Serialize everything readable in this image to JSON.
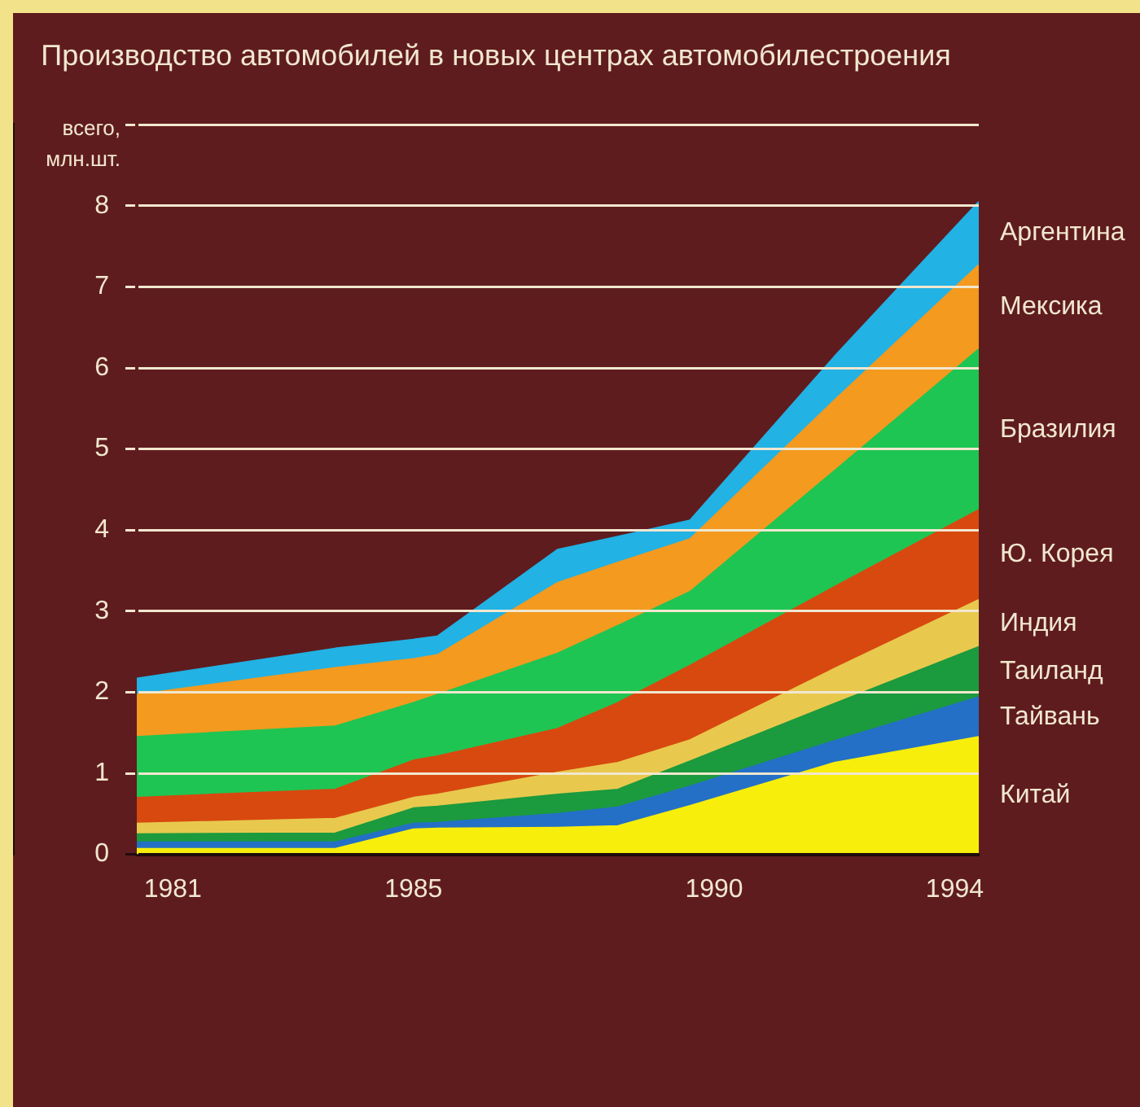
{
  "chart_data": {
    "type": "area",
    "title": "Производство автомобилей в новых центрах автомобилестроения",
    "ylabel": "всего, млн.шт.",
    "x": [
      1980.4,
      1983.7,
      1985,
      1985.4,
      1987.4,
      1988.4,
      1989.6,
      1992,
      1994.4
    ],
    "xlim": [
      1980.4,
      1994.4
    ],
    "xticks": [
      1981,
      1985,
      1990,
      1994
    ],
    "ylim": [
      0,
      9
    ],
    "yticks": [
      0,
      1,
      2,
      3,
      4,
      5,
      6,
      7,
      8,
      {
        "value": 9,
        "label": null
      }
    ],
    "stacked": true,
    "grid": "y",
    "legend": false,
    "series": [
      {
        "name": "Китай",
        "color": "#f7ee0c",
        "values": [
          0.07,
          0.07,
          0.31,
          0.32,
          0.33,
          0.35,
          0.6,
          1.13,
          1.45
        ]
      },
      {
        "name": "Тайвань",
        "color": "#2470c6",
        "values": [
          0.08,
          0.08,
          0.07,
          0.07,
          0.17,
          0.23,
          0.24,
          0.27,
          0.49
        ]
      },
      {
        "name": "Таиланд",
        "color": "#1c9a3e",
        "values": [
          0.1,
          0.11,
          0.19,
          0.2,
          0.24,
          0.22,
          0.31,
          0.46,
          0.62
        ]
      },
      {
        "name": "Индия",
        "color": "#e8c94e",
        "values": [
          0.13,
          0.18,
          0.13,
          0.15,
          0.27,
          0.33,
          0.26,
          0.43,
          0.58
        ]
      },
      {
        "name": "Ю. Корея",
        "color": "#d8490f",
        "values": [
          0.32,
          0.36,
          0.46,
          0.47,
          0.54,
          0.74,
          0.92,
          1.01,
          1.11
        ]
      },
      {
        "name": "Бразилия",
        "color": "#1fc553",
        "values": [
          0.75,
          0.78,
          0.71,
          0.76,
          0.93,
          0.95,
          0.91,
          1.43,
          1.98
        ]
      },
      {
        "name": "Мексика",
        "color": "#f39a1f",
        "values": [
          0.52,
          0.72,
          0.54,
          0.49,
          0.87,
          0.78,
          0.65,
          0.87,
          1.04
        ]
      },
      {
        "name": "Аргентина",
        "color": "#22b2e4",
        "values": [
          0.2,
          0.24,
          0.24,
          0.23,
          0.41,
          0.32,
          0.23,
          0.54,
          0.78
        ]
      }
    ]
  }
}
